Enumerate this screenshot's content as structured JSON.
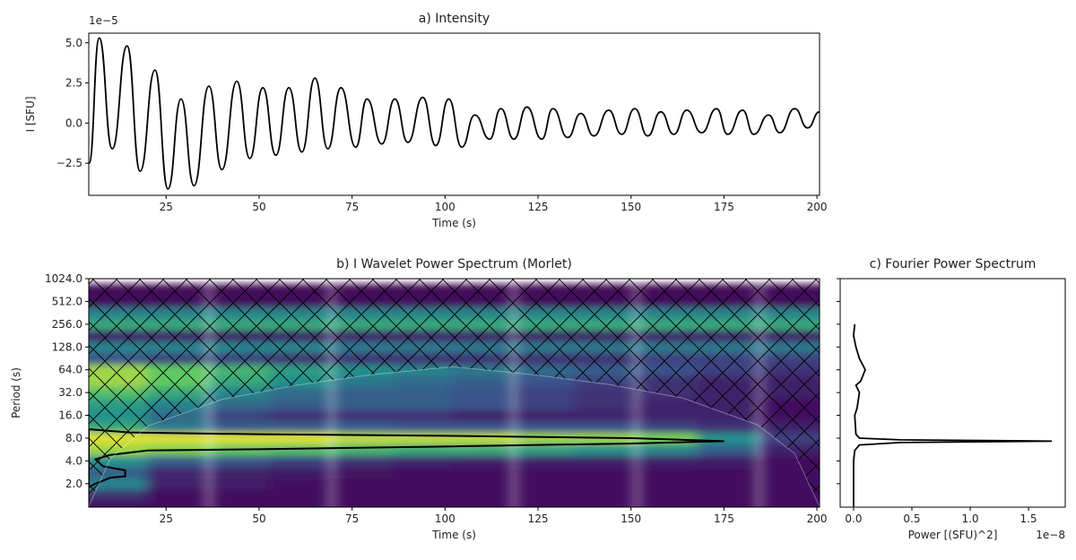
{
  "chart_data": [
    {
      "type": "line",
      "title": "a) Intensity",
      "xlabel": "Time (s)",
      "ylabel": "I [SFU]",
      "scale_label": "1e−5",
      "color": "#000000",
      "x": [
        4.3,
        7,
        10.5,
        14.5,
        18,
        22,
        25.5,
        29,
        32.5,
        36.5,
        40,
        44,
        47.5,
        51,
        54.5,
        58,
        61.5,
        65,
        68.5,
        72,
        76,
        79,
        83,
        86.5,
        90,
        94,
        97.5,
        101,
        104.5,
        108,
        112,
        115,
        118.5,
        122,
        126,
        129,
        133,
        136.5,
        140,
        144,
        147.5,
        151,
        154.5,
        158,
        161.5,
        165,
        169,
        173,
        176,
        180,
        183,
        187,
        190,
        194,
        197.5,
        200.7
      ],
      "values": [
        -2.5,
        5.3,
        -1.6,
        4.8,
        -3.0,
        3.3,
        -4.1,
        1.5,
        -3.9,
        2.3,
        -2.9,
        2.6,
        -2.2,
        2.2,
        -2.0,
        2.2,
        -1.8,
        2.8,
        -1.6,
        2.2,
        -1.5,
        1.5,
        -1.3,
        1.5,
        -1.2,
        1.6,
        -1.4,
        1.5,
        -1.5,
        0.5,
        -1.0,
        0.9,
        -1.0,
        1.0,
        -1.0,
        0.9,
        -0.9,
        0.6,
        -0.8,
        0.8,
        -0.7,
        0.9,
        -0.8,
        0.7,
        -0.7,
        0.8,
        -0.6,
        0.9,
        -0.7,
        0.8,
        -0.7,
        0.5,
        -0.6,
        0.9,
        -0.3,
        0.7
      ],
      "xlim": [
        4.2,
        200.7
      ],
      "xticks": [
        25,
        50,
        75,
        100,
        125,
        150,
        175,
        200
      ],
      "ylim": [
        -4.5,
        5.6
      ],
      "yticks": [
        {
          "value": -2.5,
          "label": "−2.5"
        },
        {
          "value": 0,
          "label": "0.0"
        },
        {
          "value": 2.5,
          "label": "2.5"
        },
        {
          "value": 5,
          "label": "5.0"
        }
      ]
    },
    {
      "type": "heatmap",
      "title": "b) I Wavelet Power Spectrum (Morlet)",
      "xlabel": "Time (s)",
      "ylabel": "Period (s)",
      "log_y": true,
      "colormap": [
        "#440154",
        "#3b528b",
        "#21918c",
        "#5ec962",
        "#fde725"
      ],
      "x": [
        12,
        28,
        45,
        61,
        78,
        94,
        110,
        127,
        143,
        160,
        176,
        193
      ],
      "y": [
        1,
        1.41,
        2,
        2.83,
        4,
        5.66,
        8,
        11.3,
        16,
        22.6,
        32,
        45.3,
        64,
        90.5,
        128,
        181,
        256,
        362,
        512,
        724,
        1024
      ],
      "z": [
        [
          0.05,
          0.05,
          0.05,
          0.05,
          0.05,
          0.05,
          0.05,
          0.05,
          0.05,
          0.05,
          0.05,
          0.05
        ],
        [
          0.15,
          0.05,
          0.05,
          0.05,
          0.05,
          0.05,
          0.05,
          0.05,
          0.05,
          0.05,
          0.05,
          0.05
        ],
        [
          0.45,
          0.1,
          0.08,
          0.05,
          0.05,
          0.05,
          0.05,
          0.05,
          0.05,
          0.05,
          0.05,
          0.05
        ],
        [
          0.3,
          0.12,
          0.1,
          0.08,
          0.06,
          0.05,
          0.05,
          0.05,
          0.05,
          0.05,
          0.05,
          0.05
        ],
        [
          0.5,
          0.3,
          0.25,
          0.2,
          0.15,
          0.12,
          0.1,
          0.1,
          0.1,
          0.1,
          0.08,
          0.05
        ],
        [
          0.85,
          0.8,
          0.75,
          0.7,
          0.65,
          0.6,
          0.6,
          0.55,
          0.5,
          0.45,
          0.3,
          0.1
        ],
        [
          0.95,
          0.95,
          0.95,
          0.95,
          0.9,
          0.9,
          0.9,
          0.85,
          0.85,
          0.8,
          0.5,
          0.2
        ],
        [
          0.6,
          0.4,
          0.3,
          0.3,
          0.3,
          0.25,
          0.25,
          0.25,
          0.25,
          0.2,
          0.15,
          0.1
        ],
        [
          0.5,
          0.35,
          0.2,
          0.15,
          0.15,
          0.15,
          0.1,
          0.1,
          0.1,
          0.1,
          0.1,
          0.05
        ],
        [
          0.55,
          0.45,
          0.35,
          0.3,
          0.3,
          0.3,
          0.25,
          0.2,
          0.15,
          0.1,
          0.1,
          0.05
        ],
        [
          0.7,
          0.6,
          0.45,
          0.35,
          0.3,
          0.3,
          0.25,
          0.2,
          0.15,
          0.15,
          0.1,
          0.1
        ],
        [
          0.85,
          0.75,
          0.6,
          0.5,
          0.4,
          0.35,
          0.3,
          0.25,
          0.2,
          0.15,
          0.1,
          0.1
        ],
        [
          0.85,
          0.75,
          0.65,
          0.55,
          0.5,
          0.45,
          0.4,
          0.35,
          0.3,
          0.25,
          0.2,
          0.15
        ],
        [
          0.25,
          0.2,
          0.2,
          0.15,
          0.15,
          0.15,
          0.15,
          0.15,
          0.15,
          0.2,
          0.2,
          0.2
        ],
        [
          0.45,
          0.45,
          0.45,
          0.45,
          0.4,
          0.4,
          0.4,
          0.4,
          0.4,
          0.4,
          0.4,
          0.4
        ],
        [
          0.1,
          0.1,
          0.1,
          0.1,
          0.1,
          0.1,
          0.1,
          0.1,
          0.1,
          0.1,
          0.1,
          0.1
        ],
        [
          0.6,
          0.6,
          0.6,
          0.6,
          0.6,
          0.6,
          0.6,
          0.6,
          0.6,
          0.6,
          0.6,
          0.6
        ],
        [
          0.45,
          0.45,
          0.45,
          0.45,
          0.45,
          0.45,
          0.45,
          0.45,
          0.45,
          0.45,
          0.45,
          0.45
        ],
        [
          0.05,
          0.05,
          0.05,
          0.05,
          0.05,
          0.05,
          0.05,
          0.05,
          0.05,
          0.05,
          0.05,
          0.05
        ],
        [
          0.02,
          0.02,
          0.02,
          0.02,
          0.02,
          0.02,
          0.02,
          0.02,
          0.02,
          0.02,
          0.02,
          0.02
        ],
        [
          0.02,
          0.02,
          0.02,
          0.02,
          0.02,
          0.02,
          0.02,
          0.02,
          0.02,
          0.02,
          0.02,
          0.02
        ]
      ],
      "coi": {
        "x": [
          4.2,
          10,
          20,
          40,
          60,
          80,
          102,
          124,
          144,
          164,
          184,
          194,
          200.7
        ],
        "period": [
          1,
          4.3,
          11.5,
          26,
          40,
          55,
          70,
          55,
          41,
          27,
          12,
          5,
          1
        ]
      },
      "contour": {
        "x": [
          4.2,
          15,
          50,
          100,
          150,
          175,
          150,
          100,
          50,
          20,
          10,
          6,
          8,
          14,
          14,
          10,
          6,
          4.2
        ],
        "period": [
          10.5,
          9.5,
          9,
          8.6,
          8,
          7.3,
          6.8,
          6.2,
          5.7,
          5.5,
          4.8,
          4.2,
          3.4,
          3.0,
          2.5,
          2.4,
          2.0,
          1.8
        ]
      },
      "xlim": [
        4.2,
        200.7
      ],
      "xticks": [
        25,
        50,
        75,
        100,
        125,
        150,
        175,
        200
      ],
      "ylim": [
        0.98,
        1024
      ],
      "yticks": [
        {
          "value": 2,
          "label": "2.0"
        },
        {
          "value": 4,
          "label": "4.0"
        },
        {
          "value": 8,
          "label": "8.0"
        },
        {
          "value": 16,
          "label": "16.0"
        },
        {
          "value": 32,
          "label": "32.0"
        },
        {
          "value": 64,
          "label": "64.0"
        },
        {
          "value": 128,
          "label": "128.0"
        },
        {
          "value": 256,
          "label": "256.0"
        },
        {
          "value": 512,
          "label": "512.0"
        },
        {
          "value": 1024,
          "label": "1024.0"
        }
      ]
    },
    {
      "type": "hline",
      "title": "c) Fourier Power Spectrum",
      "xlabel": "Power [(SFU)^2]",
      "scale_label": "1e−8",
      "color": "#000000",
      "log_y": true,
      "y": [
        1,
        2,
        4,
        5.5,
        6.5,
        7.0,
        7.3,
        7.6,
        8,
        9,
        16,
        20,
        32,
        40,
        45,
        64,
        90,
        128,
        181,
        256
      ],
      "values": [
        0,
        0,
        0,
        0.01,
        0.05,
        0.4,
        1.7,
        0.4,
        0.05,
        0.02,
        0.01,
        0.03,
        0.05,
        0.02,
        0.06,
        0.1,
        0.05,
        0.02,
        0,
        0.01
      ],
      "xlim": [
        -0.115,
        1.815
      ],
      "xticks": [
        {
          "value": 0,
          "label": "0.0"
        },
        {
          "value": 0.5,
          "label": "0.5"
        },
        {
          "value": 1,
          "label": "1.0"
        },
        {
          "value": 1.5,
          "label": "1.5"
        }
      ],
      "ylim": [
        0.98,
        1024
      ],
      "yticks": [
        2,
        4,
        8,
        16,
        32,
        64,
        128,
        256,
        512,
        1024
      ]
    }
  ]
}
